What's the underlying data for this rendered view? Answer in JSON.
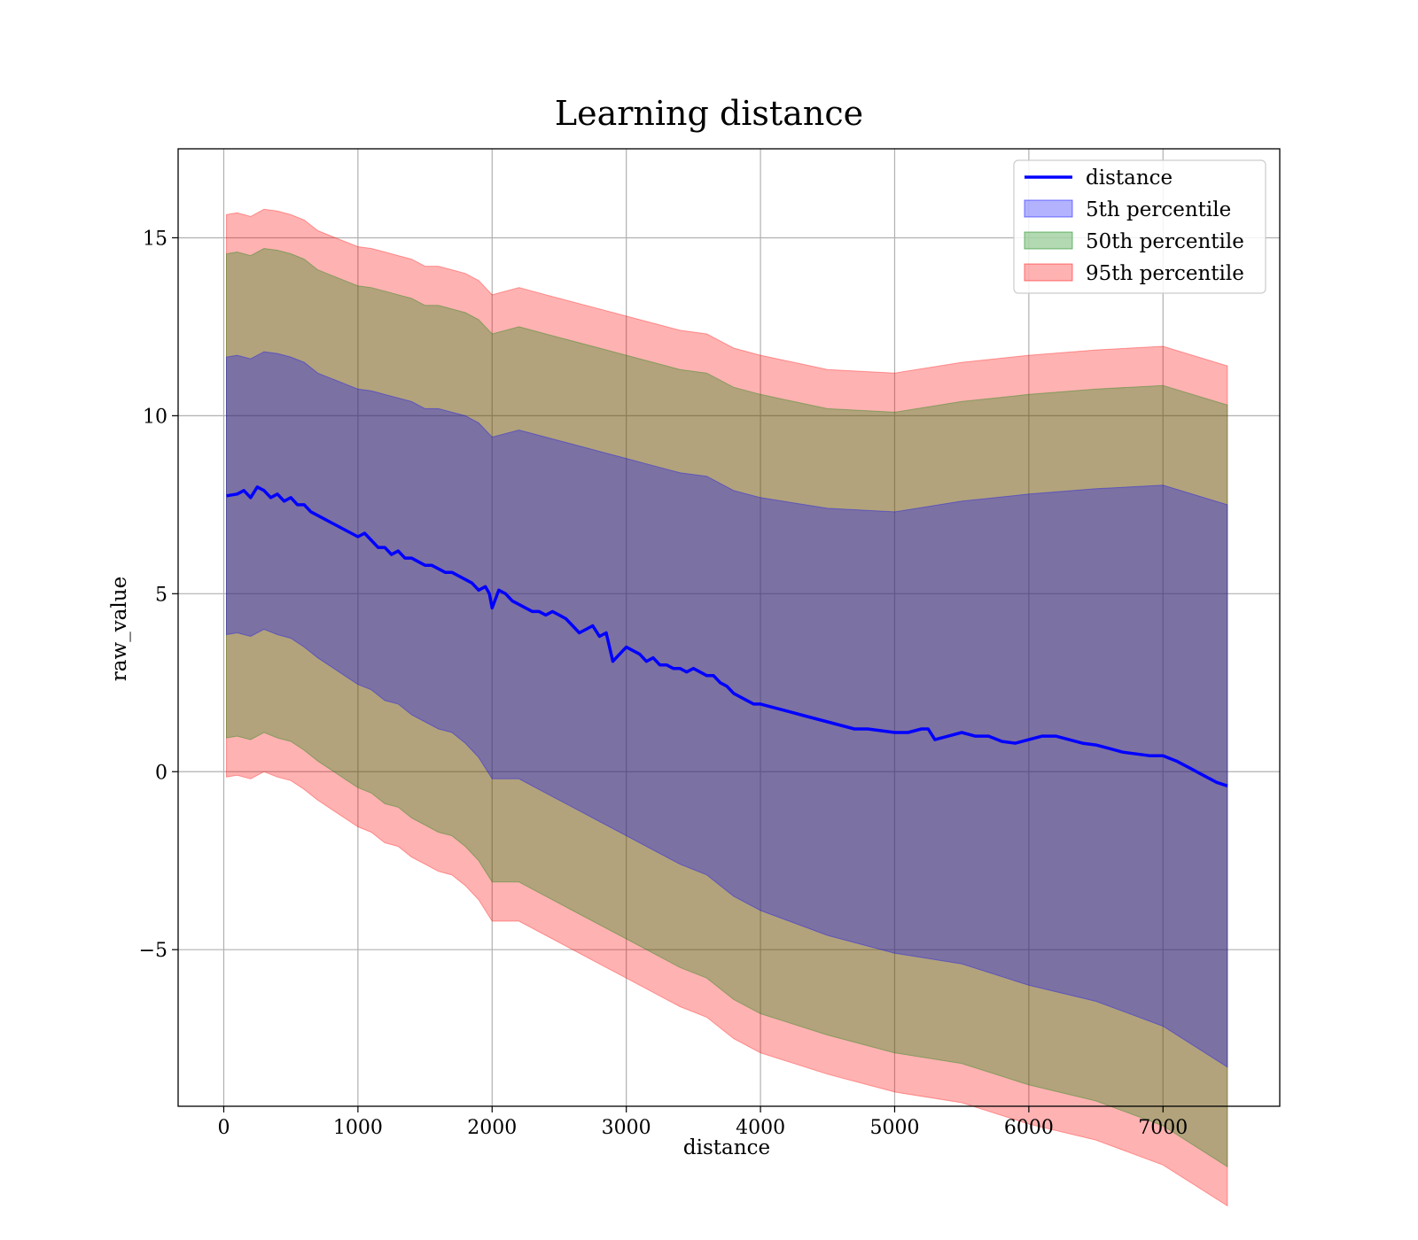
{
  "chart_data": {
    "type": "line",
    "title": "Learning distance",
    "xlabel": "distance",
    "ylabel": "raw_value",
    "xlim": [
      -340,
      7870
    ],
    "ylim": [
      -9.4,
      17.5
    ],
    "xticks": [
      0,
      1000,
      2000,
      3000,
      4000,
      5000,
      6000,
      7000
    ],
    "xtick_labels": [
      "0",
      "1000",
      "2000",
      "3000",
      "4000",
      "5000",
      "6000",
      "7000"
    ],
    "yticks": [
      -5,
      0,
      5,
      10,
      15
    ],
    "ytick_labels": [
      "−5",
      "0",
      "5",
      "10",
      "15"
    ],
    "grid": true,
    "legend_position": "top-right",
    "line": {
      "name": "distance",
      "color": "#0000ff",
      "x": [
        20,
        100,
        150,
        200,
        250,
        300,
        350,
        400,
        450,
        500,
        550,
        600,
        650,
        700,
        750,
        800,
        850,
        900,
        950,
        1000,
        1050,
        1100,
        1150,
        1200,
        1250,
        1300,
        1350,
        1400,
        1450,
        1500,
        1550,
        1600,
        1650,
        1700,
        1750,
        1800,
        1850,
        1900,
        1950,
        1980,
        2000,
        2050,
        2100,
        2150,
        2200,
        2250,
        2300,
        2350,
        2400,
        2450,
        2500,
        2550,
        2600,
        2650,
        2700,
        2750,
        2800,
        2850,
        2900,
        2950,
        3000,
        3050,
        3100,
        3150,
        3200,
        3250,
        3300,
        3350,
        3400,
        3450,
        3500,
        3550,
        3600,
        3650,
        3700,
        3750,
        3800,
        3850,
        3900,
        3950,
        4000,
        4100,
        4200,
        4300,
        4400,
        4500,
        4600,
        4700,
        4800,
        4900,
        5000,
        5100,
        5200,
        5250,
        5300,
        5400,
        5500,
        5600,
        5700,
        5800,
        5900,
        6000,
        6100,
        6200,
        6300,
        6400,
        6500,
        6600,
        6700,
        6800,
        6900,
        7000,
        7100,
        7200,
        7300,
        7400,
        7480
      ],
      "values": [
        7.75,
        7.8,
        7.9,
        7.7,
        8.0,
        7.9,
        7.7,
        7.8,
        7.6,
        7.7,
        7.5,
        7.5,
        7.3,
        7.2,
        7.1,
        7.0,
        6.9,
        6.8,
        6.7,
        6.6,
        6.7,
        6.5,
        6.3,
        6.3,
        6.1,
        6.2,
        6.0,
        6.0,
        5.9,
        5.8,
        5.8,
        5.7,
        5.6,
        5.6,
        5.5,
        5.4,
        5.3,
        5.1,
        5.2,
        5.0,
        4.6,
        5.1,
        5.0,
        4.8,
        4.7,
        4.6,
        4.5,
        4.5,
        4.4,
        4.5,
        4.4,
        4.3,
        4.1,
        3.9,
        4.0,
        4.1,
        3.8,
        3.9,
        3.1,
        3.3,
        3.5,
        3.4,
        3.3,
        3.1,
        3.2,
        3.0,
        3.0,
        2.9,
        2.9,
        2.8,
        2.9,
        2.8,
        2.7,
        2.7,
        2.5,
        2.4,
        2.2,
        2.1,
        2.0,
        1.9,
        1.9,
        1.8,
        1.7,
        1.6,
        1.5,
        1.4,
        1.3,
        1.2,
        1.2,
        1.15,
        1.1,
        1.1,
        1.2,
        1.2,
        0.9,
        1.0,
        1.1,
        1.0,
        1.0,
        0.85,
        0.8,
        0.9,
        1.0,
        1.0,
        0.9,
        0.8,
        0.75,
        0.65,
        0.55,
        0.5,
        0.45,
        0.45,
        0.3,
        0.1,
        -0.1,
        -0.3,
        -0.4
      ]
    },
    "bands": [
      {
        "name": "5th percentile",
        "color": "#0000ff",
        "half_width": [
          3.9,
          3.9,
          3.9,
          3.9,
          3.95,
          3.95,
          4.0,
          4.0,
          4.05,
          4.1,
          4.15,
          4.2,
          4.3,
          4.3,
          4.4,
          4.4,
          4.5,
          4.5,
          4.6,
          4.7,
          4.8,
          4.9,
          5.0,
          5.1,
          5.2,
          5.3,
          5.4,
          5.5,
          5.6,
          5.7,
          5.8,
          6.0,
          6.2,
          6.5,
          6.9,
          7.2,
          7.6,
          7.9
        ]
      },
      {
        "name": "50th percentile",
        "color": "#008000",
        "half_width": [
          6.8,
          6.8,
          6.8,
          6.8,
          6.85,
          6.85,
          6.9,
          6.9,
          6.95,
          7.0,
          7.05,
          7.1,
          7.2,
          7.2,
          7.3,
          7.3,
          7.4,
          7.4,
          7.5,
          7.6,
          7.7,
          7.8,
          7.9,
          8.0,
          8.1,
          8.2,
          8.3,
          8.4,
          8.5,
          8.6,
          8.7,
          8.8,
          9.0,
          9.3,
          9.7,
          10.0,
          10.4,
          10.7
        ]
      },
      {
        "name": "95th percentile",
        "color": "#ff0000",
        "half_width": [
          7.9,
          7.9,
          7.9,
          7.9,
          7.95,
          7.95,
          8.0,
          8.0,
          8.05,
          8.1,
          8.15,
          8.2,
          8.3,
          8.3,
          8.4,
          8.4,
          8.5,
          8.5,
          8.6,
          8.7,
          8.8,
          8.9,
          9.0,
          9.1,
          9.2,
          9.3,
          9.4,
          9.5,
          9.6,
          9.7,
          9.8,
          9.9,
          10.1,
          10.4,
          10.8,
          11.1,
          11.5,
          11.8
        ]
      }
    ],
    "band_x": [
      20,
      100,
      200,
      300,
      400,
      500,
      600,
      700,
      800,
      900,
      1000,
      1100,
      1200,
      1300,
      1400,
      1500,
      1600,
      1700,
      1800,
      1900,
      2000,
      2200,
      2400,
      2600,
      2800,
      3000,
      3200,
      3400,
      3600,
      3800,
      4000,
      4500,
      5000,
      5500,
      6000,
      6500,
      7000,
      7480
    ]
  }
}
